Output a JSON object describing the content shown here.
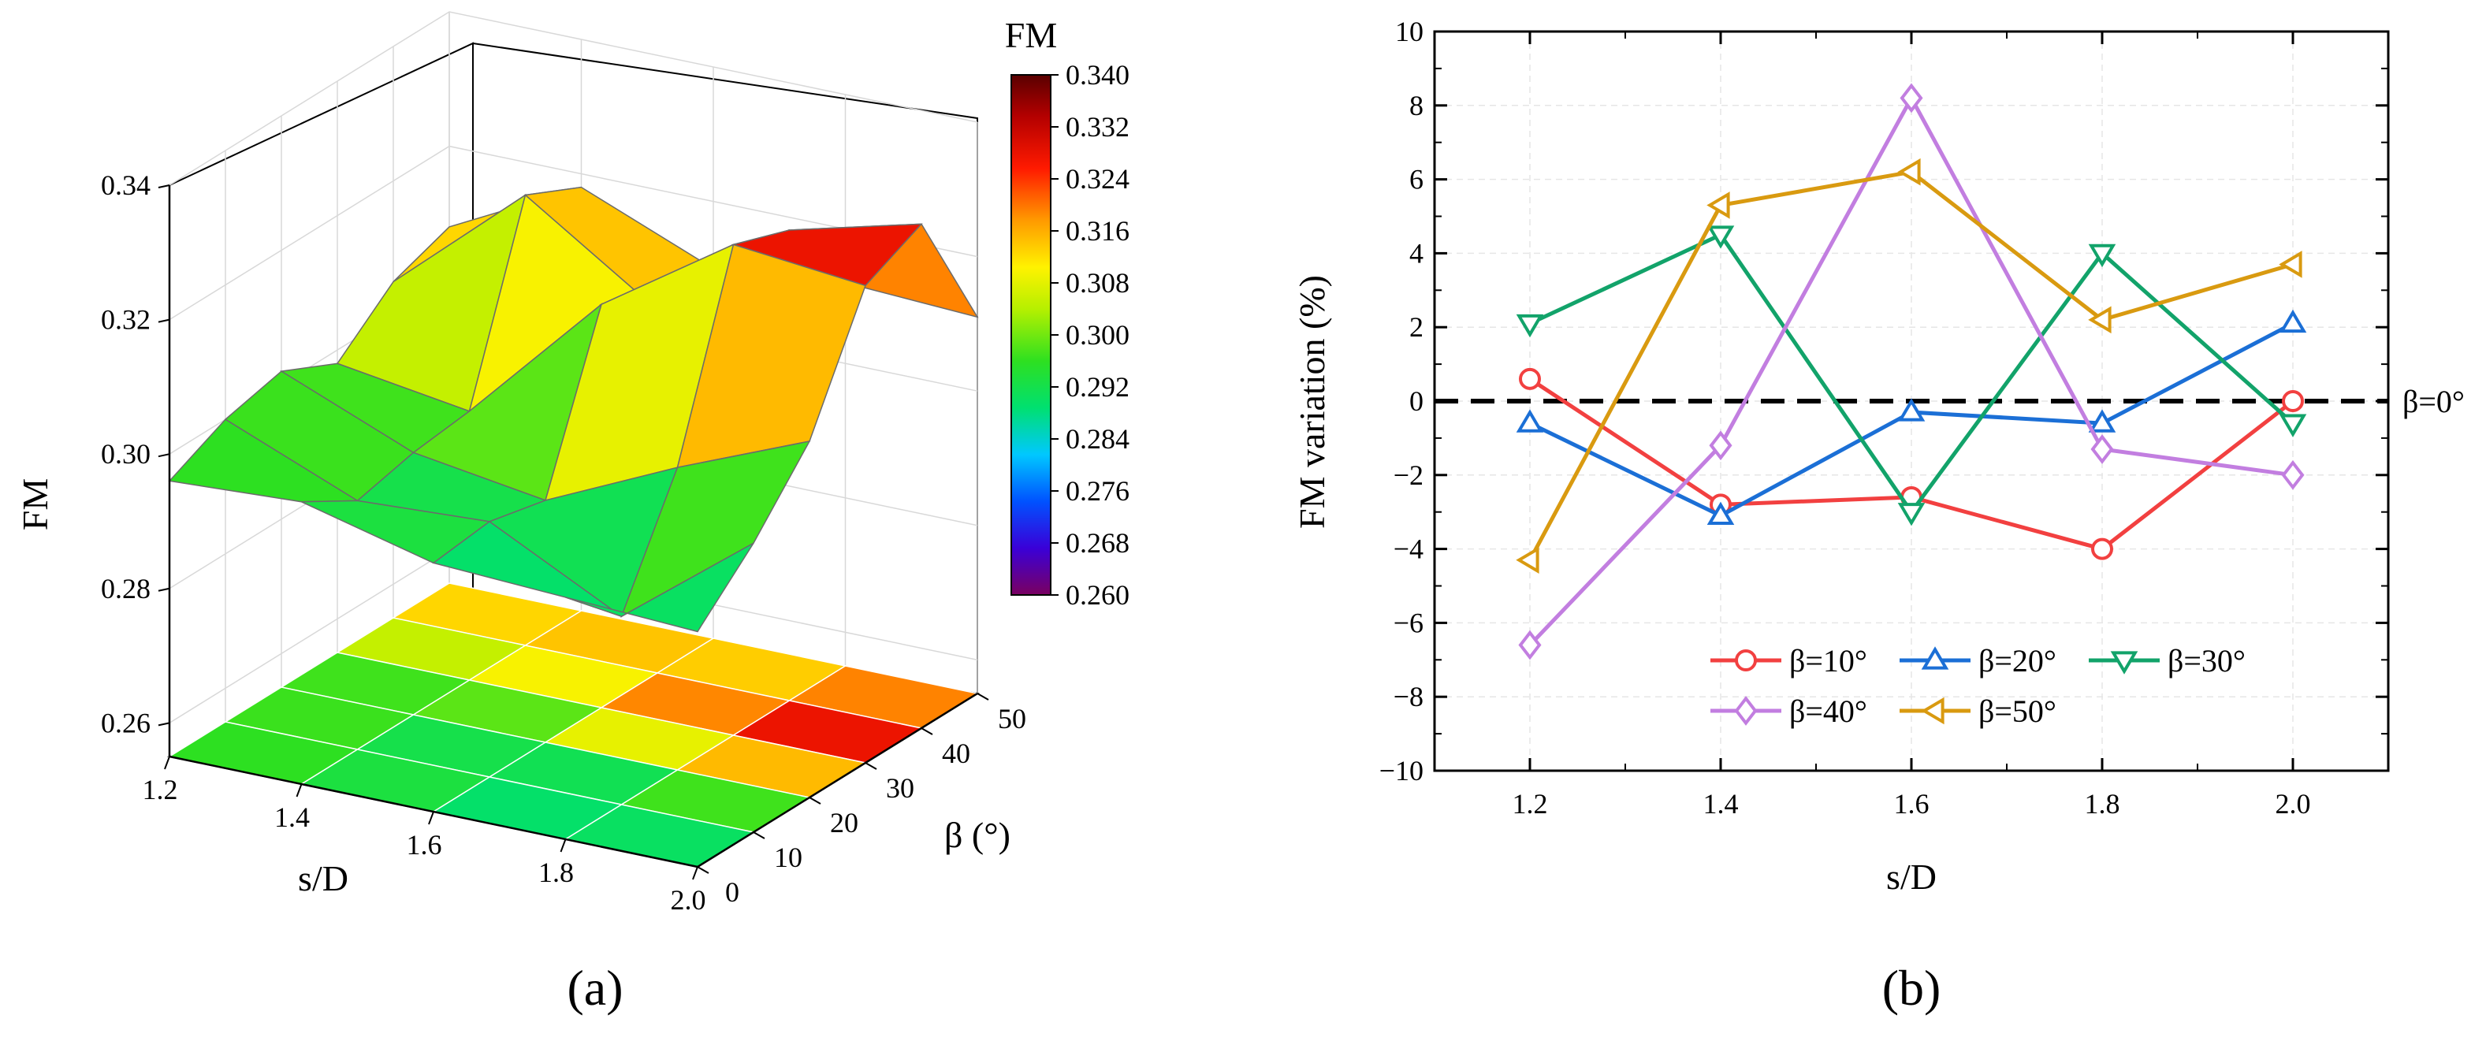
{
  "chart_data": [
    {
      "panel_label": "(a)",
      "type": "surface3d",
      "zlabel": "FM",
      "xlabel": "s/D",
      "ylabel": "β (°)",
      "zticks": [
        "0.34",
        "0.32",
        "0.30",
        "0.28",
        "0.26"
      ],
      "xticks": [
        "1.2",
        "1.4",
        "1.6",
        "1.8",
        "2.0"
      ],
      "yticks": [
        "0",
        "10",
        "20",
        "30",
        "40",
        "50"
      ],
      "zlim": [
        0.255,
        0.34
      ],
      "sD": [
        1.2,
        1.4,
        1.6,
        1.8,
        2.0
      ],
      "beta": [
        0,
        10,
        20,
        30,
        40,
        50
      ],
      "FM": [
        [
          0.296,
          0.3,
          0.302,
          0.298,
          0.305,
          0.308
        ],
        [
          0.297,
          0.292,
          0.294,
          0.295,
          0.322,
          0.318
        ],
        [
          0.292,
          0.293,
          0.291,
          0.315,
          0.309,
          0.31
        ],
        [
          0.291,
          0.283,
          0.3,
          0.328,
          0.325,
          0.312
        ],
        [
          0.29,
          0.298,
          0.308,
          0.326,
          0.33,
          0.311
        ]
      ],
      "colorbar": {
        "title": "FM",
        "ticks": [
          "0.340",
          "0.332",
          "0.324",
          "0.316",
          "0.308",
          "0.300",
          "0.292",
          "0.284",
          "0.276",
          "0.268",
          "0.260"
        ],
        "range": [
          0.26,
          0.34
        ],
        "colors": [
          "#7a0060",
          "#3a00d8",
          "#0052ff",
          "#00c8ff",
          "#00e070",
          "#2ee020",
          "#b6f000",
          "#fff200",
          "#ff9a00",
          "#ff1a00",
          "#b40000",
          "#5a0000"
        ]
      }
    },
    {
      "panel_label": "(b)",
      "type": "line",
      "xlabel": "s/D",
      "ylabel": "FM variation (%)",
      "x": [
        1.2,
        1.4,
        1.6,
        1.8,
        2.0
      ],
      "xlim": [
        1.1,
        2.1
      ],
      "ylim": [
        -10,
        10
      ],
      "xticks": [
        "1.2",
        "1.4",
        "1.6",
        "1.8",
        "2.0"
      ],
      "yticks": [
        "10",
        "8",
        "6",
        "4",
        "2",
        "0",
        "−2",
        "−4",
        "−6",
        "−8",
        "−10"
      ],
      "reference": {
        "label": "β=0°",
        "value": 0
      },
      "series": [
        {
          "name": "β=10°",
          "color": "#f24040",
          "marker": "circle",
          "values": [
            0.6,
            -2.8,
            -2.6,
            -4.0,
            0.0
          ]
        },
        {
          "name": "β=20°",
          "color": "#1b6fd6",
          "marker": "triangle-up",
          "values": [
            -0.6,
            -3.1,
            -0.3,
            -0.6,
            2.1
          ]
        },
        {
          "name": "β=30°",
          "color": "#12a36a",
          "marker": "triangle-down",
          "values": [
            2.1,
            4.5,
            -3.0,
            4.0,
            -0.6
          ]
        },
        {
          "name": "β=40°",
          "color": "#c27ee0",
          "marker": "diamond",
          "values": [
            -6.6,
            -1.2,
            8.2,
            -1.3,
            -2.0
          ]
        },
        {
          "name": "β=50°",
          "color": "#d99a10",
          "marker": "triangle-left",
          "values": [
            -4.3,
            5.3,
            6.2,
            2.2,
            3.7
          ]
        }
      ]
    }
  ]
}
